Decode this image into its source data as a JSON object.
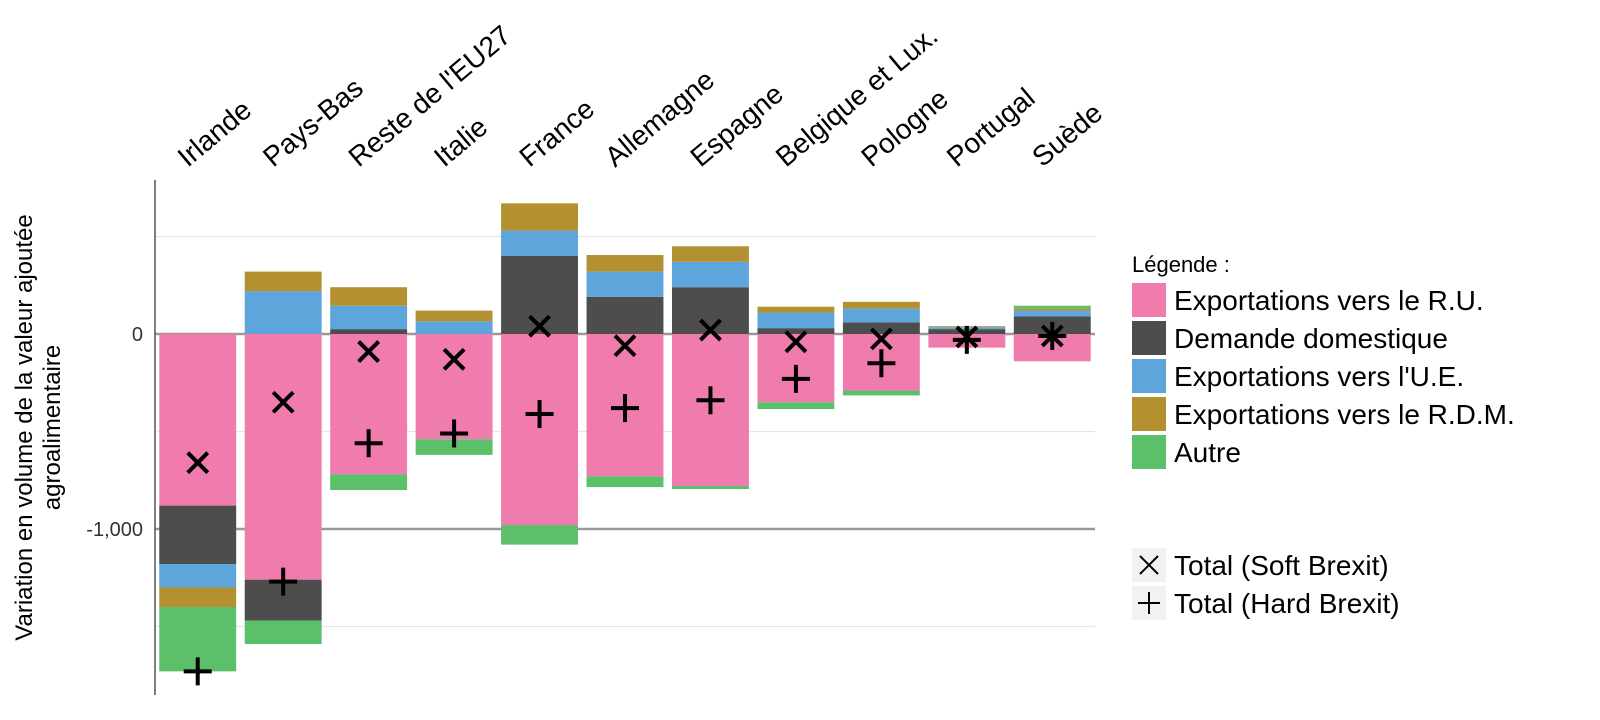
{
  "chart_data": {
    "type": "bar",
    "stacked": true,
    "categories": [
      "Irlande",
      "Pays-Bas",
      "Reste de l'EU27",
      "Italie",
      "France",
      "Allemagne",
      "Espagne",
      "Belgique et Lux.",
      "Pologne",
      "Portugal",
      "Suède"
    ],
    "ylabel_lines": [
      "Variation en volume de la valeur ajoutée",
      "agroalimentaire"
    ],
    "ylim": [
      -1850,
      750
    ],
    "y_ticks": [
      {
        "value": 0,
        "label": "0"
      },
      {
        "value": -1000,
        "label": "-1,000"
      }
    ],
    "grid": true,
    "legend_title": "Légende :",
    "legend_position": "right",
    "series": [
      {
        "name": "Exportations vers le R.U.",
        "color": "#F07BAD",
        "values": [
          -880,
          -1260,
          -720,
          -540,
          -980,
          -730,
          -780,
          -350,
          -290,
          -70,
          -140
        ]
      },
      {
        "name": "Demande domestique",
        "color": "#4D4D4D",
        "values": [
          -300,
          -210,
          25,
          0,
          400,
          190,
          240,
          30,
          60,
          25,
          90
        ]
      },
      {
        "name": "Exportations vers l'U.E.",
        "color": "#5DA5DA",
        "values": [
          -120,
          220,
          120,
          65,
          130,
          130,
          130,
          80,
          70,
          10,
          30
        ]
      },
      {
        "name": "Exportations vers le R.D.M.",
        "color": "#B49130",
        "values": [
          -100,
          100,
          95,
          55,
          140,
          85,
          80,
          30,
          35,
          5,
          10
        ]
      },
      {
        "name": "Autre",
        "color": "#5CBF6A",
        "values": [
          -330,
          -120,
          -80,
          -80,
          -100,
          -55,
          -15,
          -35,
          -25,
          0,
          15
        ]
      }
    ],
    "totals": [
      {
        "name": "Total (Soft Brexit)",
        "symbol": "×",
        "values": [
          -660,
          -350,
          -90,
          -130,
          40,
          -60,
          20,
          -40,
          -25,
          -15,
          -10
        ]
      },
      {
        "name": "Total (Hard Brexit)",
        "symbol": "+",
        "values": [
          -1730,
          -1270,
          -560,
          -510,
          -410,
          -380,
          -340,
          -230,
          -150,
          -30,
          -10
        ]
      }
    ]
  }
}
